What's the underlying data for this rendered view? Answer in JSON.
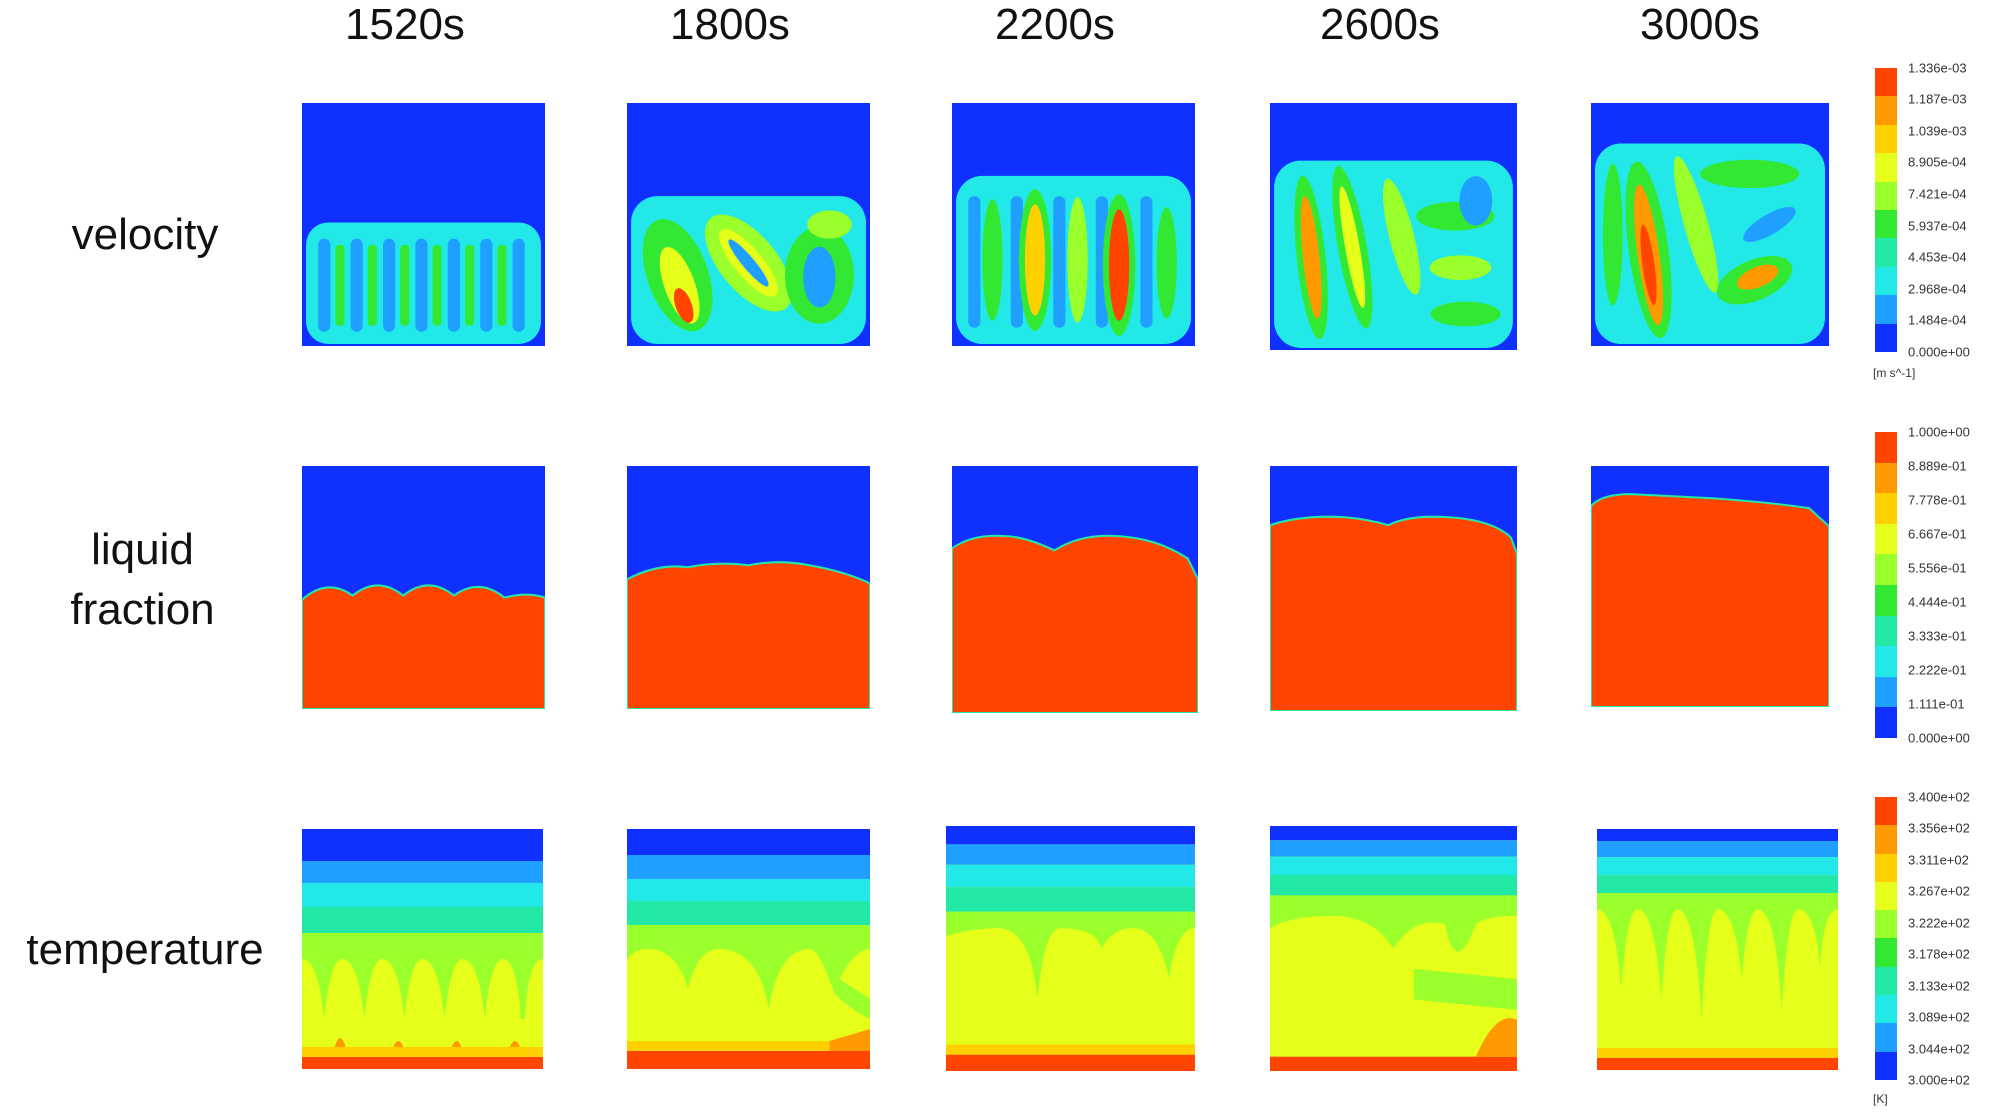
{
  "columns": [
    "1520s",
    "1800s",
    "2200s",
    "2600s",
    "3000s"
  ],
  "rows": {
    "velocity": "velocity",
    "liquid_fraction": "liquid fraction",
    "temperature": "temperature"
  },
  "colorbars": {
    "velocity": {
      "ticks": [
        "1.336e-03",
        "1.187e-03",
        "1.039e-03",
        "8.905e-04",
        "7.421e-04",
        "5.937e-04",
        "4.453e-04",
        "2.968e-04",
        "1.484e-04",
        "0.000e+00"
      ],
      "unit": "[m s^-1]"
    },
    "liquid_fraction": {
      "ticks": [
        "1.000e+00",
        "8.889e-01",
        "7.778e-01",
        "6.667e-01",
        "5.556e-01",
        "4.444e-01",
        "3.333e-01",
        "2.222e-01",
        "1.111e-01",
        "0.000e+00"
      ]
    },
    "temperature": {
      "ticks": [
        "3.400e+02",
        "3.356e+02",
        "3.311e+02",
        "3.267e+02",
        "3.222e+02",
        "3.178e+02",
        "3.133e+02",
        "3.089e+02",
        "3.044e+02",
        "3.000e+02"
      ],
      "unit": "[K]"
    }
  },
  "palette": [
    "#ff4500",
    "#ff9900",
    "#ffd000",
    "#e6ff1a",
    "#9aff2a",
    "#33e833",
    "#22e8a6",
    "#22e8e8",
    "#1f9fff",
    "#1030ff"
  ]
}
